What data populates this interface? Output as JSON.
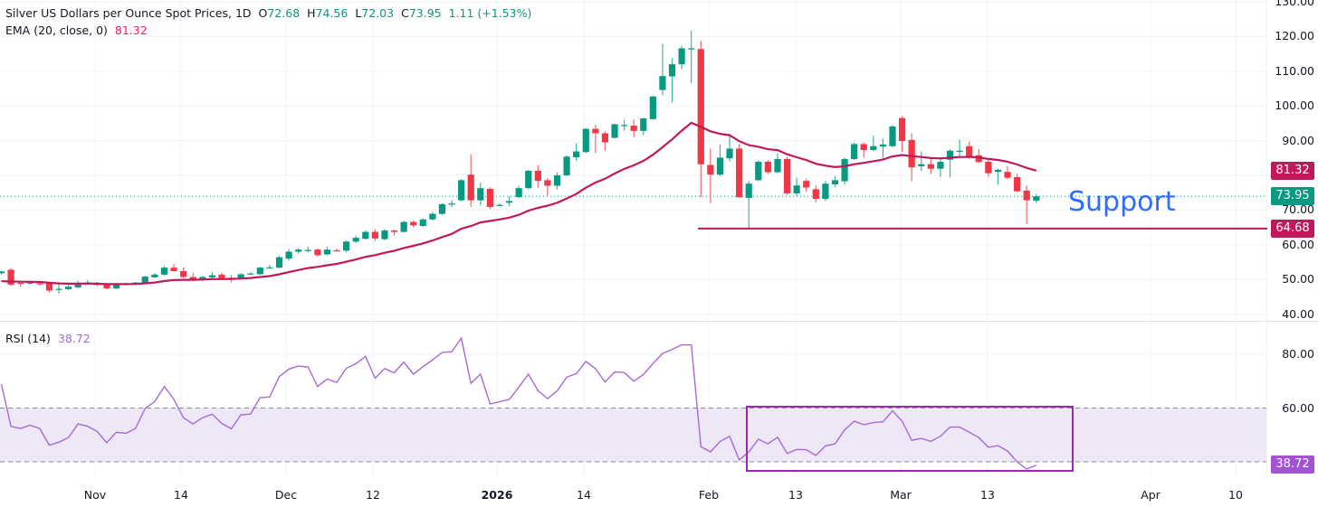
{
  "header": {
    "title": "Silver US Dollars per Ounce Spot Prices, 1D",
    "o_label": "O",
    "o": "72.68",
    "h_label": "H",
    "h": "74.56",
    "l_label": "L",
    "l": "72.03",
    "c_label": "C",
    "c": "73.95",
    "change": "1.11 (+1.53%)"
  },
  "ema_legend": {
    "label": "EMA (20, close, 0)",
    "value": "81.32"
  },
  "rsi_legend": {
    "label": "RSI (14)",
    "value": "38.72"
  },
  "annotation": {
    "support_text": "Support"
  },
  "badges": {
    "ema": "81.32",
    "last": "73.95",
    "support": "64.68",
    "rsi": "38.72"
  },
  "colors": {
    "up": "#089981",
    "down": "#f23645",
    "ema": "#c2185b",
    "rsi": "#a66ad6",
    "rsi_band": "#ede7f6",
    "box": "#9c27b0",
    "support_text": "#2f6bff"
  },
  "chart_data": [
    {
      "type": "candlestick",
      "title": "Silver US Dollars per Ounce Spot Prices, 1D",
      "ylim": [
        40,
        130
      ],
      "y_ticks": [
        "130.00",
        "120.00",
        "110.00",
        "100.00",
        "90.00",
        "70.00",
        "60.00",
        "50.00",
        "40.00"
      ],
      "x_ticks": [
        "Nov",
        "14",
        "Dec",
        "12",
        "2026",
        "14",
        "Feb",
        "13",
        "Mar",
        "13",
        "Apr",
        "10"
      ],
      "grid": true,
      "last_price": 73.95,
      "support_level": 64.68,
      "ema_period": 20,
      "ema_last": 81.32,
      "ohlc": [
        [
          51.8,
          52.6,
          51.4,
          52.3
        ],
        [
          52.8,
          53.2,
          48.1,
          48.5
        ],
        [
          49.0,
          49.4,
          47.9,
          48.8
        ],
        [
          48.9,
          49.6,
          48.5,
          49.1
        ],
        [
          48.9,
          49.3,
          48.2,
          48.7
        ],
        [
          48.9,
          49.0,
          46.2,
          46.8
        ],
        [
          47.1,
          48.6,
          45.9,
          47.3
        ],
        [
          47.2,
          48.5,
          46.9,
          47.9
        ],
        [
          47.7,
          49.6,
          47.4,
          49.0
        ],
        [
          49.0,
          49.8,
          48.6,
          49.1
        ],
        [
          49.0,
          49.3,
          48.1,
          48.4
        ],
        [
          48.6,
          48.9,
          47.2,
          47.4
        ],
        [
          47.4,
          48.7,
          47.2,
          48.5
        ],
        [
          48.6,
          49.1,
          48.2,
          48.7
        ],
        [
          48.6,
          49.3,
          48.3,
          49.1
        ],
        [
          48.9,
          51.1,
          48.6,
          50.8
        ],
        [
          50.6,
          51.8,
          50.4,
          51.4
        ],
        [
          51.4,
          53.9,
          51.1,
          53.4
        ],
        [
          53.4,
          54.5,
          52.1,
          52.4
        ],
        [
          52.4,
          53.5,
          50.4,
          50.7
        ],
        [
          50.7,
          51.9,
          49.8,
          50.0
        ],
        [
          50.1,
          51.0,
          49.5,
          50.7
        ],
        [
          50.6,
          52.1,
          50.3,
          51.2
        ],
        [
          51.4,
          52.0,
          50.0,
          50.3
        ],
        [
          50.5,
          51.3,
          49.1,
          50.4
        ],
        [
          50.2,
          51.8,
          50.0,
          51.5
        ],
        [
          51.5,
          52.1,
          51.2,
          51.7
        ],
        [
          51.5,
          53.6,
          51.3,
          53.4
        ],
        [
          53.4,
          54.2,
          53.1,
          53.5
        ],
        [
          53.4,
          56.9,
          53.2,
          56.4
        ],
        [
          56.0,
          58.8,
          55.4,
          58.0
        ],
        [
          58.0,
          59.0,
          57.4,
          58.6
        ],
        [
          58.5,
          59.4,
          57.8,
          58.5
        ],
        [
          58.6,
          59.0,
          56.6,
          57.0
        ],
        [
          57.2,
          59.4,
          57.0,
          58.6
        ],
        [
          58.4,
          58.9,
          58.0,
          58.2
        ],
        [
          58.3,
          61.2,
          57.8,
          60.9
        ],
        [
          60.9,
          62.6,
          60.5,
          62.0
        ],
        [
          61.7,
          64.2,
          61.5,
          63.7
        ],
        [
          63.7,
          64.4,
          61.1,
          61.8
        ],
        [
          61.6,
          64.5,
          61.3,
          64.1
        ],
        [
          64.1,
          64.4,
          62.6,
          63.7
        ],
        [
          63.7,
          66.9,
          63.5,
          66.55
        ],
        [
          66.55,
          67.0,
          65.0,
          65.6
        ],
        [
          65.4,
          67.6,
          65.1,
          67.3
        ],
        [
          67.3,
          69.4,
          67.0,
          68.9
        ],
        [
          68.9,
          71.9,
          68.6,
          71.7
        ],
        [
          71.9,
          72.8,
          70.8,
          71.9
        ],
        [
          72.8,
          78.9,
          72.5,
          78.6
        ],
        [
          80.2,
          86.0,
          70.9,
          72.8
        ],
        [
          72.8,
          77.9,
          71.4,
          76.3
        ],
        [
          76.1,
          76.6,
          70.3,
          70.9
        ],
        [
          71.5,
          71.9,
          71.0,
          71.5
        ],
        [
          72.1,
          74.0,
          71.1,
          72.6
        ],
        [
          73.7,
          77.0,
          73.4,
          76.3
        ],
        [
          76.3,
          81.6,
          76.0,
          81.3
        ],
        [
          81.3,
          82.9,
          76.4,
          78.4
        ],
        [
          78.6,
          79.1,
          74.1,
          77.0
        ],
        [
          77.0,
          80.8,
          75.9,
          80.0
        ],
        [
          80.0,
          85.7,
          79.8,
          85.4
        ],
        [
          85.2,
          89.2,
          84.2,
          86.9
        ],
        [
          86.7,
          93.6,
          86.4,
          93.4
        ],
        [
          93.4,
          94.5,
          86.5,
          92.1
        ],
        [
          92.1,
          92.7,
          87.1,
          89.5
        ],
        [
          90.8,
          94.9,
          90.6,
          94.7
        ],
        [
          94.5,
          96.0,
          92.8,
          94.5
        ],
        [
          94.3,
          96.1,
          91.0,
          92.8
        ],
        [
          92.8,
          96.6,
          91.6,
          96.4
        ],
        [
          96.2,
          102.9,
          96.0,
          102.7
        ],
        [
          104.6,
          117.9,
          103.1,
          108.6
        ],
        [
          108.5,
          113.8,
          101.0,
          112.0
        ],
        [
          112.0,
          117.3,
          110.6,
          116.6
        ],
        [
          116.6,
          121.7,
          106.6,
          116.6
        ],
        [
          116.4,
          118.8,
          73.7,
          83.2
        ],
        [
          83.0,
          87.7,
          72.0,
          80.2
        ],
        [
          80.2,
          88.8,
          79.8,
          85.1
        ],
        [
          84.9,
          92.0,
          84.0,
          87.7
        ],
        [
          87.7,
          89.0,
          73.5,
          73.7
        ],
        [
          73.5,
          78.4,
          64.4,
          77.6
        ],
        [
          78.6,
          84.3,
          78.3,
          83.9
        ],
        [
          83.9,
          84.4,
          80.4,
          80.9
        ],
        [
          80.9,
          86.4,
          80.6,
          84.7
        ],
        [
          84.7,
          85.3,
          74.4,
          74.8
        ],
        [
          74.8,
          79.3,
          74.0,
          77.1
        ],
        [
          78.4,
          79.0,
          75.2,
          76.5
        ],
        [
          76.0,
          77.1,
          72.2,
          73.2
        ],
        [
          73.2,
          78.4,
          72.6,
          77.6
        ],
        [
          77.4,
          79.8,
          76.6,
          78.6
        ],
        [
          78.3,
          85.1,
          77.3,
          84.7
        ],
        [
          84.7,
          89.4,
          84.4,
          89.0
        ],
        [
          89.0,
          89.5,
          85.1,
          87.3
        ],
        [
          87.3,
          91.4,
          87.0,
          88.4
        ],
        [
          88.3,
          90.6,
          85.0,
          88.9
        ],
        [
          88.4,
          94.4,
          88.1,
          94.1
        ],
        [
          96.5,
          97.0,
          86.7,
          89.9
        ],
        [
          90.2,
          92.1,
          78.3,
          82.3
        ],
        [
          82.6,
          86.9,
          81.2,
          83.2
        ],
        [
          83.2,
          85.2,
          80.4,
          81.9
        ],
        [
          81.9,
          85.2,
          79.6,
          83.9
        ],
        [
          84.5,
          87.5,
          79.4,
          87.1
        ],
        [
          87.1,
          90.2,
          85.5,
          87.1
        ],
        [
          88.4,
          89.7,
          84.8,
          85.4
        ],
        [
          85.8,
          87.6,
          83.6,
          83.8
        ],
        [
          83.9,
          84.5,
          79.6,
          80.6
        ],
        [
          81.0,
          82.0,
          77.3,
          81.6
        ],
        [
          81.0,
          82.6,
          78.9,
          79.3
        ],
        [
          79.5,
          80.5,
          75.2,
          75.4
        ],
        [
          75.6,
          77.0,
          65.9,
          72.8
        ],
        [
          72.68,
          74.56,
          72.03,
          73.95
        ]
      ]
    },
    {
      "type": "line",
      "title": "RSI (14)",
      "ylim": [
        30,
        90
      ],
      "y_ticks": [
        "80.00",
        "60.00"
      ],
      "bands": [
        40,
        60
      ],
      "last": 38.72,
      "values": [
        68.9,
        53.2,
        52.4,
        53.6,
        52.4,
        46.2,
        47.3,
        49.0,
        54.1,
        53.2,
        51.3,
        47.1,
        51.0,
        50.6,
        52.4,
        59.9,
        62.4,
        68.0,
        63.3,
        56.4,
        54.1,
        56.4,
        57.7,
        54.3,
        52.3,
        57.5,
        57.7,
        63.9,
        64.1,
        71.7,
        74.5,
        75.6,
        75.3,
        68.0,
        70.8,
        69.5,
        74.8,
        76.5,
        79.2,
        71.1,
        74.7,
        73.1,
        77.1,
        72.6,
        75.4,
        77.9,
        80.7,
        80.9,
        86.0,
        69.2,
        72.6,
        61.5,
        62.4,
        63.2,
        67.8,
        72.6,
        66.5,
        63.5,
        66.4,
        71.5,
        72.8,
        77.3,
        74.7,
        69.7,
        73.4,
        73.2,
        70.0,
        72.5,
        76.5,
        80.3,
        81.8,
        83.5,
        83.5,
        45.6,
        43.7,
        47.6,
        49.5,
        40.7,
        43.7,
        48.4,
        46.7,
        49.1,
        43.1,
        44.6,
        44.5,
        42.4,
        45.9,
        46.7,
        51.9,
        55.1,
        53.8,
        54.6,
        54.9,
        59.0,
        55.1,
        48.0,
        48.7,
        47.6,
        49.5,
        52.9,
        52.9,
        51.0,
        49.0,
        45.4,
        46.0,
        44.0,
        40.0,
        37.3,
        38.72
      ]
    }
  ]
}
